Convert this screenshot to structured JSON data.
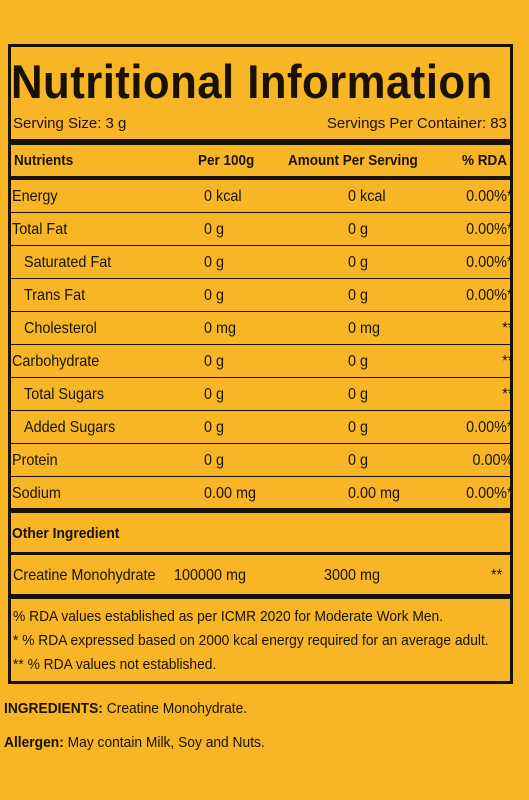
{
  "colors": {
    "label_background": "#f8b626",
    "ink": "#1a1200",
    "page_background": "#ffffff"
  },
  "title": "Nutritional Information",
  "serving_size": "Serving Size: 3 g",
  "servings_per_container": "Servings Per Container: 83",
  "table": {
    "headers": [
      "Nutrients",
      "Per 100g",
      "Amount Per Serving",
      "% RDA"
    ],
    "rows": [
      {
        "nutrient": "Energy",
        "per_100g": "0 kcal",
        "per_serving": "0 kcal",
        "rda": "0.00%*"
      },
      {
        "nutrient": "Total Fat",
        "per_100g": "0 g",
        "per_serving": "0 g",
        "rda": "0.00%*"
      },
      {
        "nutrient": "Saturated Fat",
        "per_100g": "0 g",
        "per_serving": "0 g",
        "rda": "0.00%*"
      },
      {
        "nutrient": "Trans Fat",
        "per_100g": "0 g",
        "per_serving": "0 g",
        "rda": "0.00%*"
      },
      {
        "nutrient": "Cholesterol",
        "per_100g": "0 mg",
        "per_serving": "0 mg",
        "rda": "**"
      },
      {
        "nutrient": "Carbohydrate",
        "per_100g": "0 g",
        "per_serving": "0 g",
        "rda": "**"
      },
      {
        "nutrient": "Total Sugars",
        "per_100g": "0 g",
        "per_serving": "0 g",
        "rda": "**"
      },
      {
        "nutrient": "Added Sugars",
        "per_100g": "0 g",
        "per_serving": "0 g",
        "rda": "0.00%*"
      },
      {
        "nutrient": "Protein",
        "per_100g": "0 g",
        "per_serving": "0 g",
        "rda": "0.00%"
      },
      {
        "nutrient": "Sodium",
        "per_100g": "0.00 mg",
        "per_serving": "0.00 mg",
        "rda": "0.00%*"
      }
    ]
  },
  "other_ingredient": {
    "title": "Other Ingredient",
    "name": "Creatine Monohydrate",
    "per_100g": "100000 mg",
    "per_serving": "3000 mg",
    "rda": "**"
  },
  "notes": [
    "% RDA values established as per ICMR 2020 for Moderate Work Men.",
    "* % RDA expressed based on 2000 kcal energy required for an average adult.",
    "** % RDA values not established."
  ],
  "ingredients": {
    "label": "INGREDIENTS:",
    "value": "Creatine Monohydrate."
  },
  "allergen": {
    "label": "Allergen:",
    "value": "May contain Milk, Soy and Nuts."
  }
}
